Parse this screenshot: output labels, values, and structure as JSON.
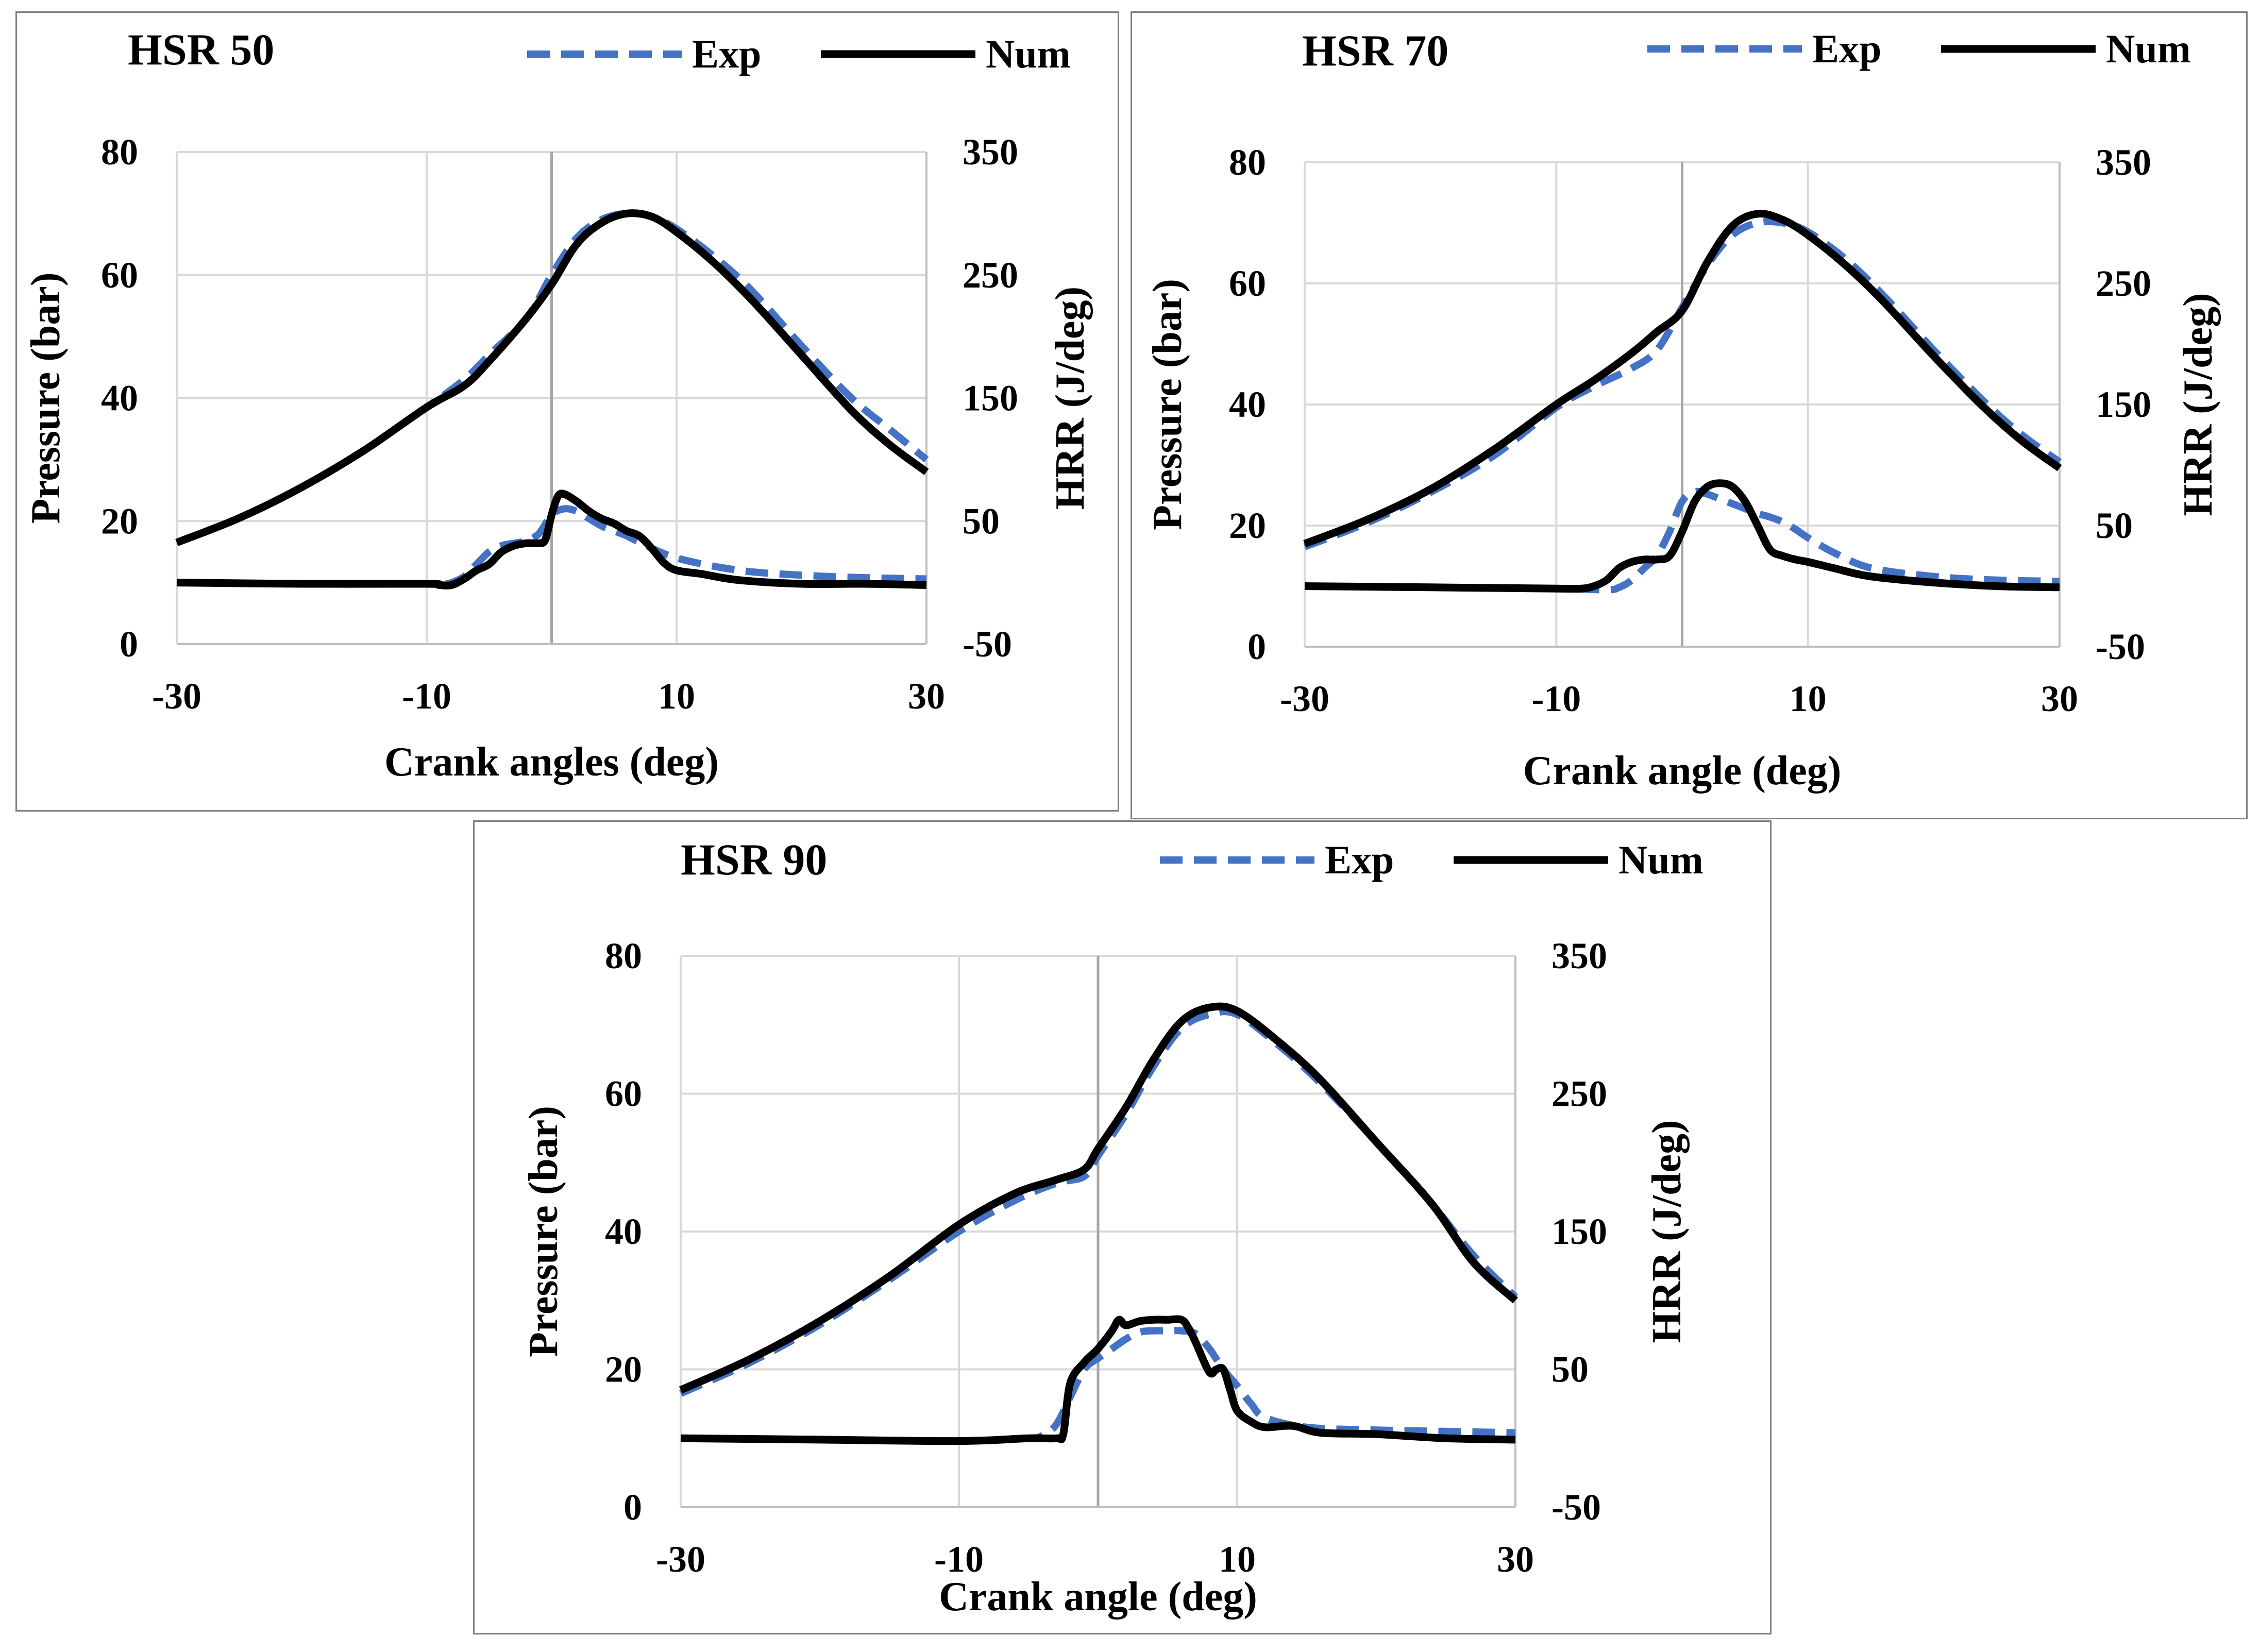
{
  "colors": {
    "exp": "#4472C4",
    "num": "#000000",
    "grid": "#d9d9d9",
    "axis": "#bfbfbf",
    "zero_line": "#a6a6a6"
  },
  "legend": {
    "exp_label": "Exp",
    "num_label": "Num"
  },
  "chart_data": [
    {
      "type": "line",
      "title": "HSR 50",
      "xlabel": "Crank angles (deg)",
      "ylabel": "Pressure (bar)",
      "y2label": "HRR (J/deg)",
      "xlim": [
        -30,
        30
      ],
      "ylim": [
        0,
        80
      ],
      "y2lim": [
        -50,
        350
      ],
      "x_ticks": [
        -30,
        -10,
        10,
        30
      ],
      "y_ticks": [
        0,
        20,
        40,
        60,
        80
      ],
      "y2_ticks": [
        -50,
        50,
        150,
        250,
        350
      ],
      "x_tick_labels": [
        "-30",
        "-10",
        "10",
        "30"
      ],
      "y_tick_labels": [
        "0",
        "20",
        "40",
        "60",
        "80"
      ],
      "y2_tick_labels": [
        "-50",
        "50",
        "150",
        "250",
        "350"
      ],
      "series": [
        {
          "name": "Exp",
          "quantity": "pressure",
          "axis": "left",
          "style": "dashed",
          "x": [
            -30,
            -25,
            -20,
            -15,
            -10,
            -7,
            -5,
            -2,
            0,
            2,
            4,
            6,
            8,
            10,
            13,
            16,
            20,
            24,
            27,
            30
          ],
          "y": [
            16.5,
            20.5,
            25.5,
            31.5,
            38.5,
            43,
            47,
            53,
            60,
            66,
            69,
            70,
            69.5,
            67.5,
            63,
            57.5,
            48.5,
            40,
            35,
            30
          ]
        },
        {
          "name": "Num",
          "quantity": "pressure",
          "axis": "left",
          "style": "solid",
          "x": [
            -30,
            -25,
            -20,
            -15,
            -10,
            -7,
            -5,
            -2,
            0,
            2,
            4,
            6,
            8,
            10,
            13,
            16,
            20,
            24,
            27,
            30
          ],
          "y": [
            16.5,
            20.5,
            25.5,
            31.5,
            38.5,
            42,
            46,
            53,
            58.5,
            65,
            68.5,
            70,
            69.5,
            67,
            62,
            56,
            47,
            38,
            32.5,
            28
          ]
        },
        {
          "name": "Exp",
          "quantity": "HRR",
          "axis": "right",
          "style": "dashed",
          "x": [
            -30,
            -20,
            -10,
            -9,
            -8,
            -7,
            -6,
            -5,
            -4,
            -3,
            -2,
            -1,
            0,
            1,
            2,
            3,
            4,
            5,
            6,
            7,
            10,
            15,
            20,
            25,
            30
          ],
          "y": [
            0,
            -1,
            -1,
            -2,
            0,
            5,
            15,
            25,
            30,
            32,
            34,
            40,
            55,
            60,
            58,
            52,
            46,
            42,
            38,
            33,
            20,
            10,
            6,
            4,
            3
          ]
        },
        {
          "name": "Num",
          "quantity": "HRR",
          "axis": "right",
          "style": "solid",
          "x": [
            -30,
            -20,
            -10,
            -9,
            -8,
            -7,
            -6,
            -5,
            -4,
            -3,
            -2,
            -1,
            -0.5,
            0,
            0.5,
            1,
            2,
            3,
            4,
            5,
            6,
            7,
            8,
            9,
            10,
            12,
            15,
            20,
            25,
            30
          ],
          "y": [
            0,
            -1,
            -1,
            -2,
            -2,
            3,
            10,
            15,
            25,
            30,
            32,
            32,
            35,
            55,
            70,
            72,
            66,
            58,
            52,
            48,
            42,
            38,
            28,
            16,
            10,
            7,
            2,
            -1,
            -1,
            -2
          ]
        }
      ]
    },
    {
      "type": "line",
      "title": "HSR 70",
      "xlabel": "Crank angle (deg)",
      "ylabel": "Pressure (bar)",
      "y2label": "HRR (J/deg)",
      "xlim": [
        -30,
        30
      ],
      "ylim": [
        0,
        80
      ],
      "y2lim": [
        -50,
        350
      ],
      "x_ticks": [
        -30,
        -10,
        10,
        30
      ],
      "y_ticks": [
        0,
        20,
        40,
        60,
        80
      ],
      "y2_ticks": [
        -50,
        50,
        150,
        250,
        350
      ],
      "x_tick_labels": [
        "-30",
        "-10",
        "10",
        "30"
      ],
      "y_tick_labels": [
        "0",
        "20",
        "40",
        "60",
        "80"
      ],
      "y2_tick_labels": [
        "-50",
        "50",
        "150",
        "250",
        "350"
      ],
      "series": [
        {
          "name": "Exp",
          "quantity": "pressure",
          "axis": "left",
          "style": "dashed",
          "x": [
            -30,
            -25,
            -20,
            -15,
            -10,
            -7,
            -4,
            -2,
            0,
            2,
            4,
            6,
            8,
            10,
            13,
            16,
            20,
            24,
            27,
            30
          ],
          "y": [
            16.5,
            20.5,
            25.5,
            31.5,
            39.5,
            43,
            46,
            49,
            56,
            63,
            68,
            70,
            70,
            68.5,
            64,
            58,
            49,
            40.5,
            35,
            30.5
          ]
        },
        {
          "name": "Num",
          "quantity": "pressure",
          "axis": "left",
          "style": "solid",
          "x": [
            -30,
            -25,
            -20,
            -15,
            -10,
            -7,
            -4,
            -2,
            0,
            2,
            4,
            6,
            8,
            10,
            13,
            16,
            20,
            24,
            27,
            30
          ],
          "y": [
            17,
            21,
            26,
            32.5,
            40,
            44,
            48.5,
            52,
            55.5,
            63.5,
            69.5,
            71.5,
            70.5,
            68,
            63,
            57,
            48,
            39.5,
            34,
            29.5
          ]
        },
        {
          "name": "Exp",
          "quantity": "HRR",
          "axis": "right",
          "style": "dashed",
          "x": [
            -30,
            -20,
            -10,
            -6,
            -5,
            -4,
            -3,
            -2,
            -1,
            0,
            1,
            2,
            3,
            4,
            5,
            6,
            7,
            8,
            9,
            10,
            12,
            15,
            20,
            25,
            30
          ],
          "y": [
            0,
            -1,
            -2,
            -3,
            -1,
            5,
            15,
            25,
            45,
            70,
            78,
            76,
            72,
            68,
            64,
            60,
            57,
            53,
            47,
            40,
            28,
            15,
            8,
            5,
            4
          ]
        },
        {
          "name": "Num",
          "quantity": "HRR",
          "axis": "right",
          "style": "solid",
          "x": [
            -30,
            -20,
            -10,
            -8,
            -7,
            -6,
            -5,
            -4,
            -3,
            -2,
            -1,
            0,
            1,
            2,
            3,
            4,
            5,
            6,
            7,
            8,
            9,
            10,
            12,
            15,
            20,
            25,
            30
          ],
          "y": [
            0,
            -1,
            -2,
            -2,
            0,
            5,
            15,
            20,
            22,
            22,
            25,
            45,
            70,
            82,
            85,
            82,
            70,
            50,
            30,
            25,
            22,
            20,
            15,
            8,
            3,
            0,
            -1
          ]
        }
      ]
    },
    {
      "type": "line",
      "title": "HSR 90",
      "xlabel": "Crank angle (deg)",
      "ylabel": "Pressure (bar)",
      "y2label": "HRR (J/deg)",
      "xlim": [
        -30,
        30
      ],
      "ylim": [
        0,
        80
      ],
      "y2lim": [
        -50,
        350
      ],
      "x_ticks": [
        -30,
        -10,
        10,
        30
      ],
      "y_ticks": [
        0,
        20,
        40,
        60,
        80
      ],
      "y2_ticks": [
        -50,
        50,
        150,
        250,
        350
      ],
      "x_tick_labels": [
        "-30",
        "-10",
        "10",
        "30"
      ],
      "y_tick_labels": [
        "0",
        "20",
        "40",
        "60",
        "80"
      ],
      "y2_tick_labels": [
        "-50",
        "50",
        "150",
        "250",
        "350"
      ],
      "series": [
        {
          "name": "Exp",
          "quantity": "pressure",
          "axis": "left",
          "style": "dashed",
          "x": [
            -30,
            -25,
            -20,
            -15,
            -10,
            -6,
            -3,
            -1,
            0,
            2,
            4,
            6,
            8,
            10,
            13,
            16,
            20,
            24,
            27,
            30
          ],
          "y": [
            16.5,
            21,
            26.5,
            33,
            40,
            44.5,
            47,
            48,
            51,
            57,
            64,
            69.5,
            71.5,
            71.5,
            67,
            61.5,
            53,
            44,
            36.5,
            30.5
          ]
        },
        {
          "name": "Num",
          "quantity": "pressure",
          "axis": "left",
          "style": "solid",
          "x": [
            -30,
            -25,
            -20,
            -15,
            -10,
            -6,
            -3,
            -1,
            0,
            2,
            4,
            6,
            8,
            10,
            13,
            16,
            20,
            24,
            27,
            30
          ],
          "y": [
            17,
            21.5,
            27,
            33.5,
            41,
            45.5,
            47.5,
            49,
            52,
            58,
            65,
            70.5,
            72.5,
            72,
            67.5,
            62,
            53,
            44,
            35.5,
            30
          ]
        },
        {
          "name": "Exp",
          "quantity": "HRR",
          "axis": "right",
          "style": "dashed",
          "x": [
            -30,
            -20,
            -10,
            -5,
            -4,
            -3,
            -2,
            -1,
            0,
            1,
            2,
            3,
            4,
            5,
            6,
            7,
            8,
            9,
            10,
            11,
            12,
            15,
            20,
            25,
            30
          ],
          "y": [
            0,
            -1,
            -2,
            0,
            2,
            10,
            30,
            50,
            58,
            65,
            72,
            77,
            78,
            78,
            78,
            76,
            65,
            50,
            38,
            25,
            15,
            8,
            6,
            5,
            4
          ]
        },
        {
          "name": "Num",
          "quantity": "HRR",
          "axis": "right",
          "style": "solid",
          "x": [
            -30,
            -20,
            -10,
            -5,
            -3,
            -2.5,
            -2,
            -1,
            0,
            1,
            1.5,
            2,
            3,
            4,
            5,
            6,
            6.5,
            7,
            8,
            8.5,
            9,
            9.5,
            10,
            11,
            12,
            14,
            16,
            20,
            25,
            30
          ],
          "y": [
            0,
            -1,
            -2,
            0,
            0,
            3,
            40,
            55,
            65,
            78,
            86,
            82,
            85,
            86,
            86,
            86,
            80,
            70,
            48,
            50,
            50,
            35,
            20,
            12,
            8,
            9,
            4,
            3,
            0,
            -1
          ]
        }
      ]
    }
  ]
}
